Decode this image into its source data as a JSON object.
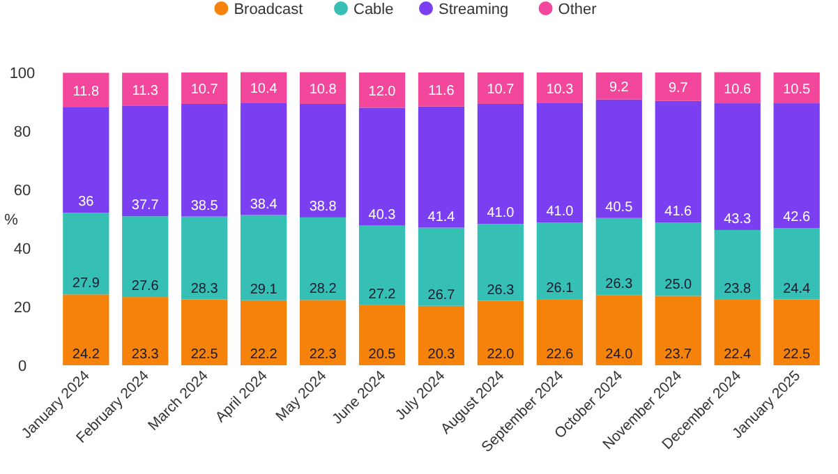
{
  "chart_data": {
    "type": "bar",
    "stacked": true,
    "ylabel": "%",
    "legend": "top",
    "grid": false,
    "categories": [
      "January 2024",
      "February 2024",
      "March 2024",
      "April 2024",
      "May 2024",
      "June 2024",
      "July 2024",
      "August 2024",
      "September 2024",
      "October 2024",
      "November 2024",
      "December 2024",
      "January 2025"
    ],
    "ylim": [
      0,
      100
    ],
    "yticks": [
      0,
      20,
      40,
      60,
      80,
      100
    ],
    "series": [
      {
        "name": "Broadcast",
        "color": "#f5820b",
        "values": [
          24.2,
          23.3,
          22.5,
          22.2,
          22.3,
          20.5,
          20.3,
          22.0,
          22.6,
          24.0,
          23.7,
          22.4,
          22.5
        ],
        "value_labels": [
          "24.2",
          "23.3",
          "22.5",
          "22.2",
          "22.3",
          "20.5",
          "20.3",
          "22.0",
          "22.6",
          "24.0",
          "23.7",
          "22.4",
          "22.5"
        ]
      },
      {
        "name": "Cable",
        "color": "#36bfb5",
        "values": [
          27.9,
          27.6,
          28.3,
          29.1,
          28.2,
          27.2,
          26.7,
          26.3,
          26.1,
          26.3,
          25.0,
          23.8,
          24.4
        ],
        "value_labels": [
          "27.9",
          "27.6",
          "28.3",
          "29.1",
          "28.2",
          "27.2",
          "26.7",
          "26.3",
          "26.1",
          "26.3",
          "25.0",
          "23.8",
          "24.4"
        ]
      },
      {
        "name": "Streaming",
        "color": "#7b3ff2",
        "values": [
          36,
          37.7,
          38.5,
          38.4,
          38.8,
          40.3,
          41.4,
          41.0,
          41.0,
          40.5,
          41.6,
          43.3,
          42.6
        ],
        "value_labels": [
          "36",
          "37.7",
          "38.5",
          "38.4",
          "38.8",
          "40.3",
          "41.4",
          "41.0",
          "41.0",
          "40.5",
          "41.6",
          "43.3",
          "42.6"
        ]
      },
      {
        "name": "Other",
        "color": "#f2479b",
        "values": [
          11.8,
          11.3,
          10.7,
          10.4,
          10.8,
          12.0,
          11.6,
          10.7,
          10.3,
          9.2,
          9.7,
          10.6,
          10.5
        ],
        "value_labels": [
          "11.8",
          "11.3",
          "10.7",
          "10.4",
          "10.8",
          "12.0",
          "11.6",
          "10.7",
          "10.3",
          "9.2",
          "9.7",
          "10.6",
          "10.5"
        ]
      }
    ]
  }
}
